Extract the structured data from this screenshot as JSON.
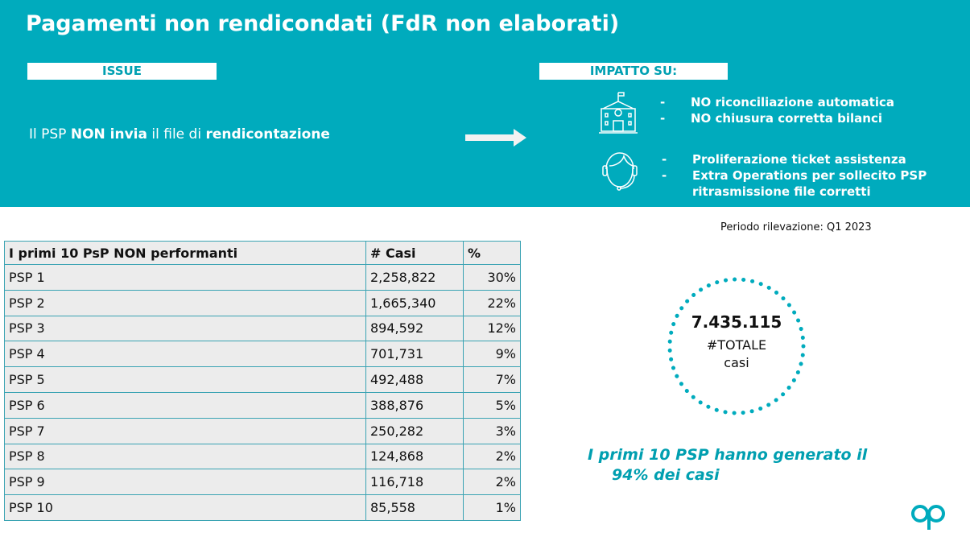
{
  "title": "Pagamenti non rendicondati (FdR non elaborati)",
  "issue": {
    "label": "ISSUE",
    "text_parts": [
      "Il PSP ",
      "NON invia",
      " il file di ",
      "rendicontazione"
    ]
  },
  "impact": {
    "label": "IMPATTO SU:",
    "groups": [
      {
        "icon": "town-hall-icon",
        "items": [
          "NO riconciliazione automatica",
          "NO chiusura corretta bilanci"
        ]
      },
      {
        "icon": "support-operator-icon",
        "items": [
          "Proliferazione ticket assistenza",
          "Extra Operations per sollecito PSP ritrasmissione file corretti"
        ]
      }
    ]
  },
  "period": "Periodo rilevazione: Q1 2023",
  "table": {
    "headers": [
      "I primi 10 PsP NON performanti",
      "# Casi",
      "%"
    ],
    "rows": [
      [
        "PSP 1",
        "2,258,822",
        "30%"
      ],
      [
        "PSP 2",
        "1,665,340",
        "22%"
      ],
      [
        "PSP 3",
        "894,592",
        "12%"
      ],
      [
        "PSP 4",
        "701,731",
        "9%"
      ],
      [
        "PSP 5",
        "492,488",
        "7%"
      ],
      [
        "PSP 6",
        "388,876",
        "5%"
      ],
      [
        "PSP 7",
        "250,282",
        "3%"
      ],
      [
        "PSP 8",
        "124,868",
        "2%"
      ],
      [
        "PSP 9",
        "116,718",
        "2%"
      ],
      [
        "PSP 10",
        "85,558",
        "1%"
      ]
    ]
  },
  "total": {
    "value": "7.435.115",
    "label1": "#TOTALE",
    "label2": "casi"
  },
  "summary": {
    "line1": "I primi 10 PSP hanno generato il",
    "line2": "94% dei casi"
  },
  "colors": {
    "brand": "#00abbd"
  }
}
